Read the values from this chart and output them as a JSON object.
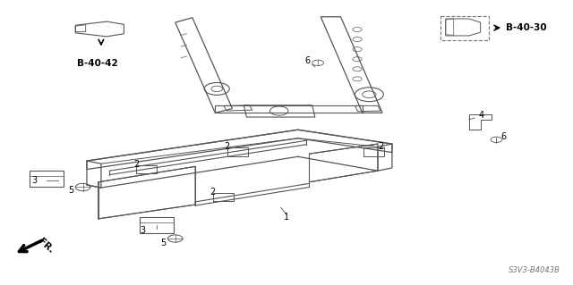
{
  "title": "",
  "bg_color": "#ffffff",
  "fig_width": 6.4,
  "fig_height": 3.19,
  "dpi": 100,
  "diagram_code": "S3V3-B4043B",
  "ref_b4042": "B-40-42",
  "ref_b4030": "B-40-30",
  "fr_label": "FR.",
  "line_color": "#555555",
  "text_color": "#000000"
}
